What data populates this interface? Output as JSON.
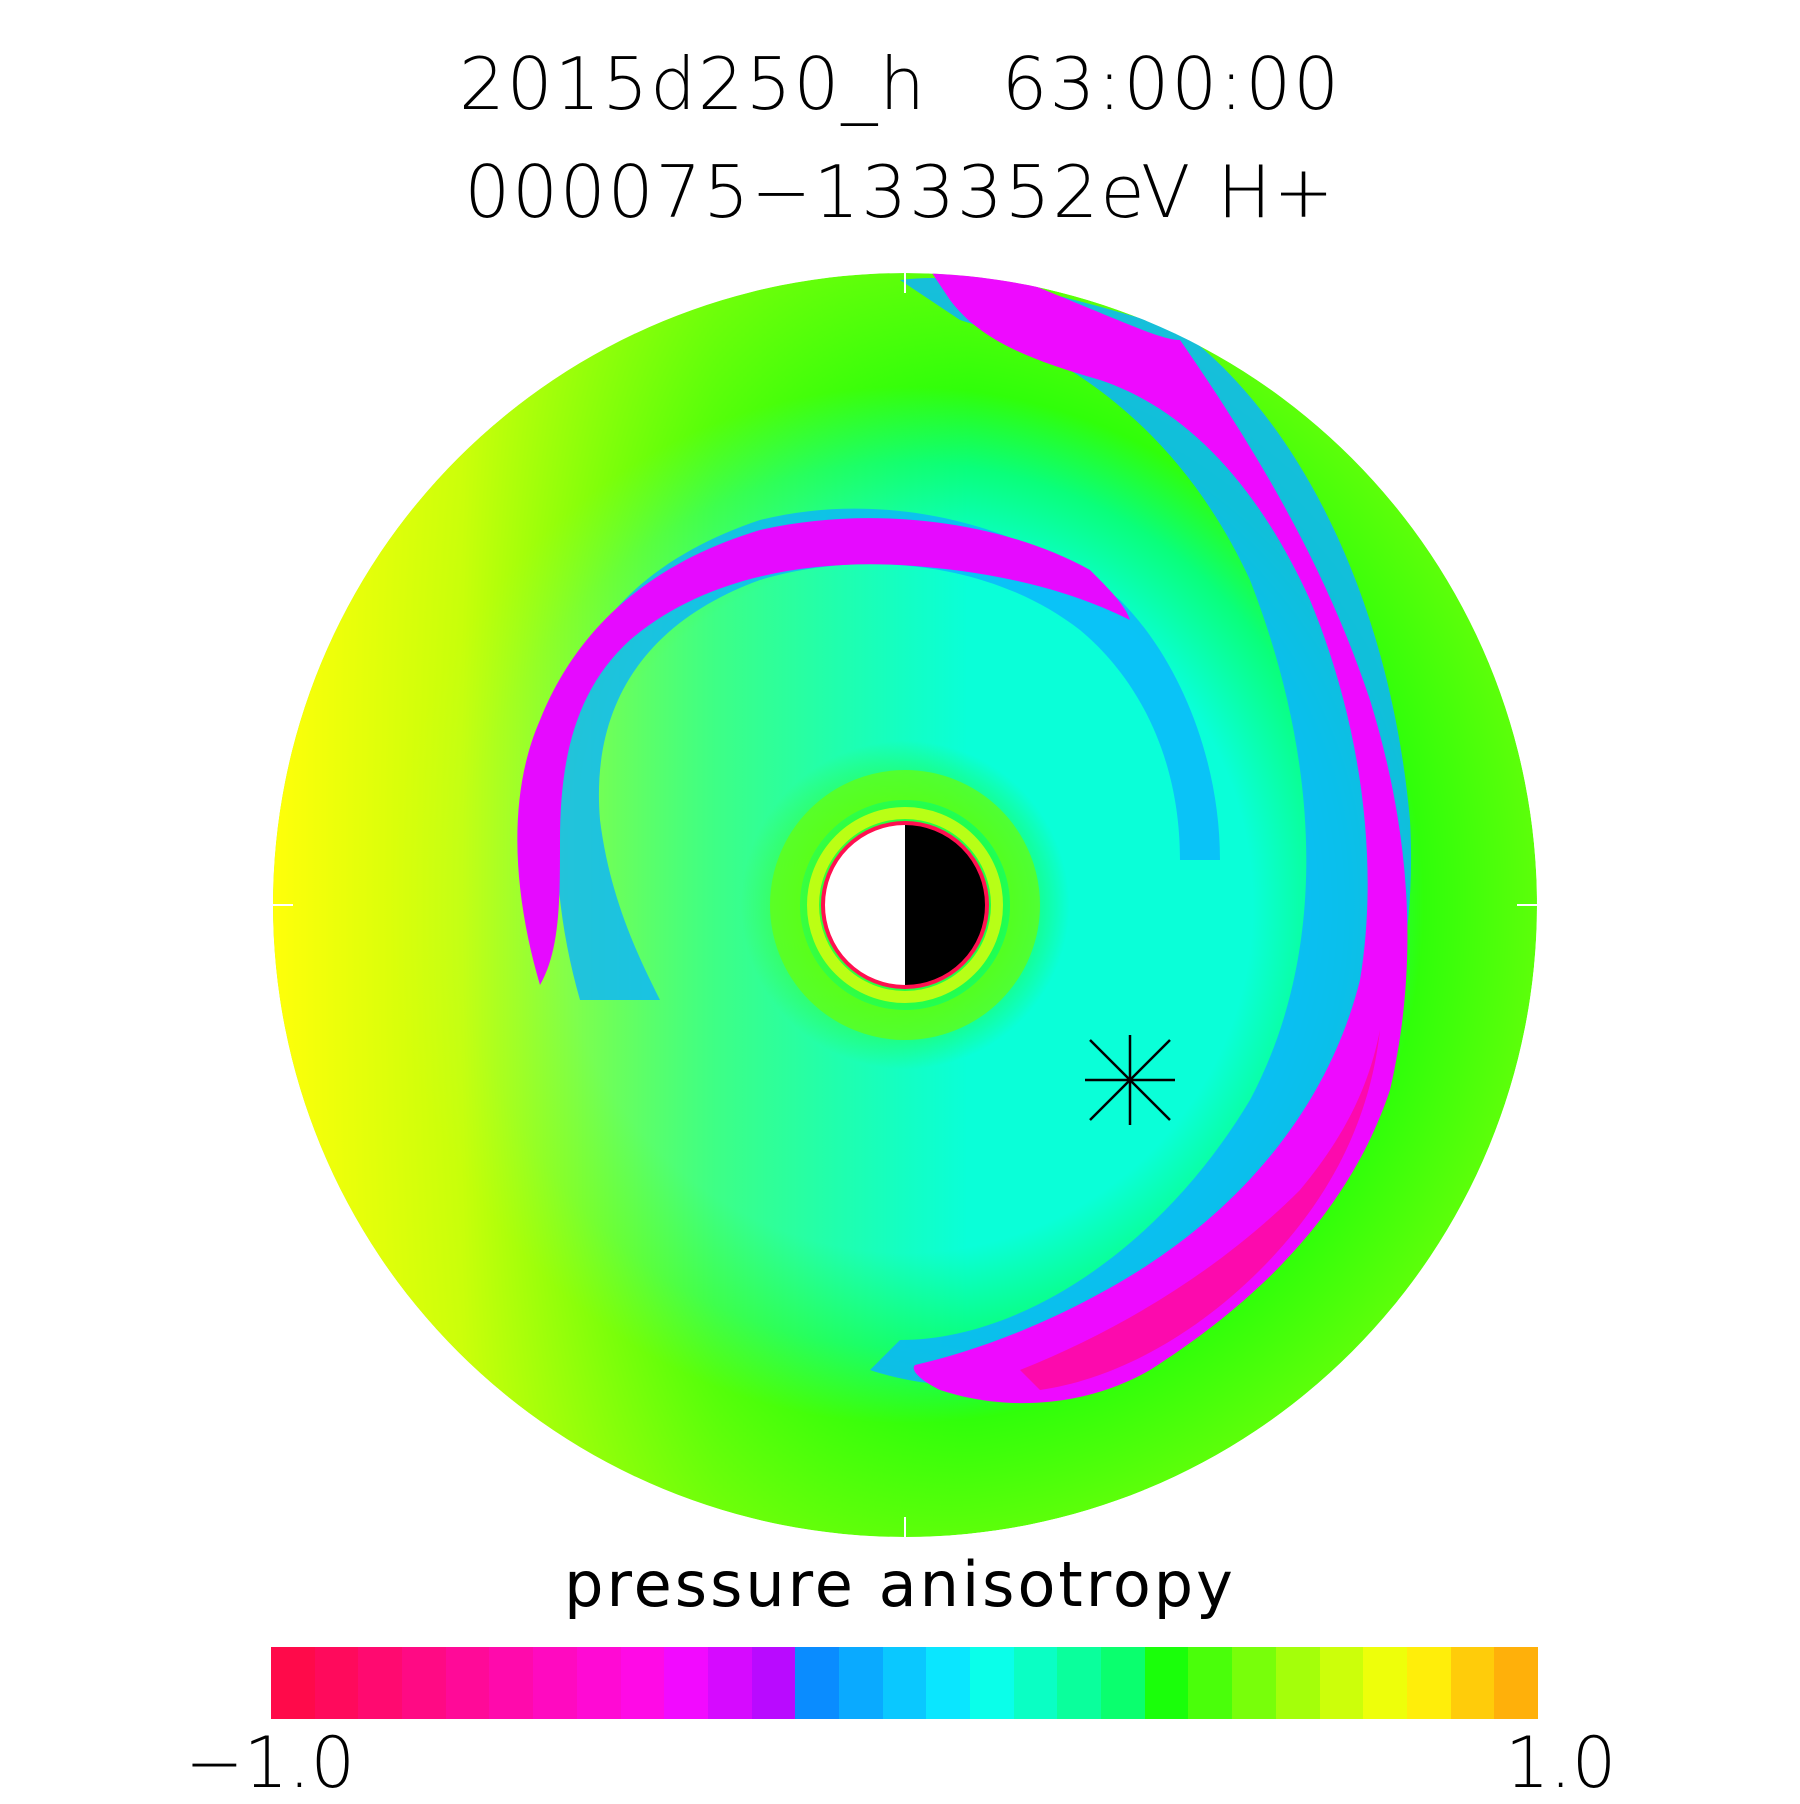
{
  "title": {
    "line1": "2015d250_h   63:00:00",
    "line2": "000075−133352eV H+"
  },
  "colorbar": {
    "label": "pressure anisotropy",
    "min_label": "−1.0",
    "max_label": "1.0",
    "min": -1.0,
    "max": 1.0,
    "colors": [
      "#ff0a4a",
      "#ff0a5c",
      "#ff0a70",
      "#ff0a84",
      "#ff0a98",
      "#ff0aac",
      "#ff0ac0",
      "#ff0ad4",
      "#ff0ae6",
      "#f20aff",
      "#d60aff",
      "#b90aff",
      "#0a8cff",
      "#0aaaff",
      "#0ac8ff",
      "#0ae6ff",
      "#0affea",
      "#0affc4",
      "#0aff9c",
      "#0aff6e",
      "#1aff0a",
      "#4aff0a",
      "#78ff0a",
      "#a4ff0a",
      "#ccff0a",
      "#eeff0a",
      "#ffee0a",
      "#ffcc0a",
      "#ffb00a"
    ]
  },
  "map": {
    "background": "#5cff0a",
    "planet_day": "#ffffff",
    "planet_night": "#000000",
    "planet_outline": "#ff1050",
    "marker": "asterisk"
  }
}
